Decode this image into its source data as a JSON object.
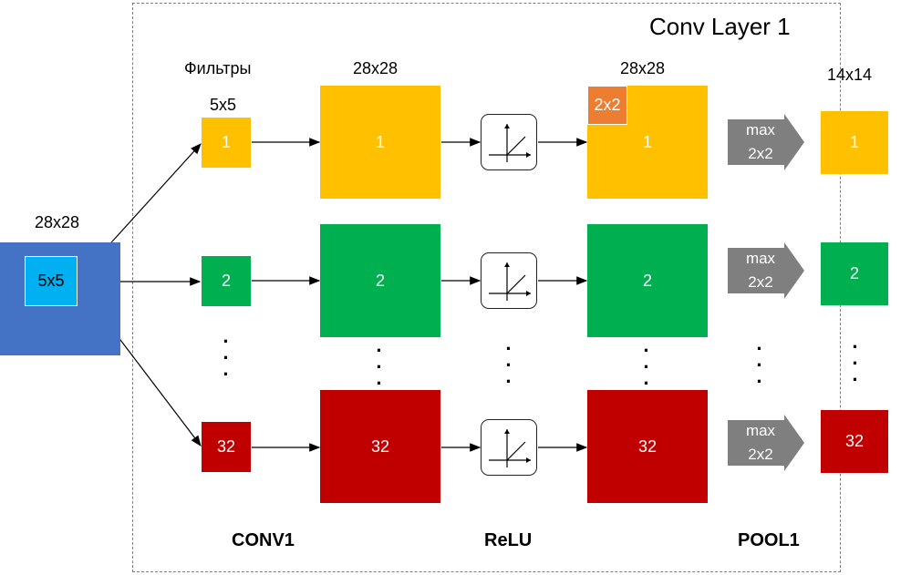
{
  "layer_title": "Conv Layer 1",
  "input": {
    "size_label": "28x28",
    "kernel_label": "5x5"
  },
  "filters": {
    "heading": "Фильтры",
    "size_label": "5x5",
    "ids": [
      "1",
      "2",
      "32"
    ]
  },
  "conv_maps": {
    "size_label": "28x28",
    "ids": [
      "1",
      "2",
      "32"
    ]
  },
  "relu_maps": {
    "size_label": "28x28",
    "window_label": "2x2",
    "ids": [
      "1",
      "2",
      "32"
    ]
  },
  "pool": {
    "op_line1": "max",
    "op_line2": "2x2"
  },
  "pooled_maps": {
    "size_label": "14x14",
    "ids": [
      "1",
      "2",
      "32"
    ]
  },
  "stage_labels": {
    "conv": "CONV1",
    "relu": "ReLU",
    "pool": "POOL1"
  },
  "colors": {
    "input": "#4472C4",
    "kernel": "#00B0F0",
    "map1": "#FFC000",
    "map2": "#00B050",
    "map32": "#C00000",
    "pool_window": "#ED7D31",
    "pool_arrow": "#7F7F7F"
  }
}
